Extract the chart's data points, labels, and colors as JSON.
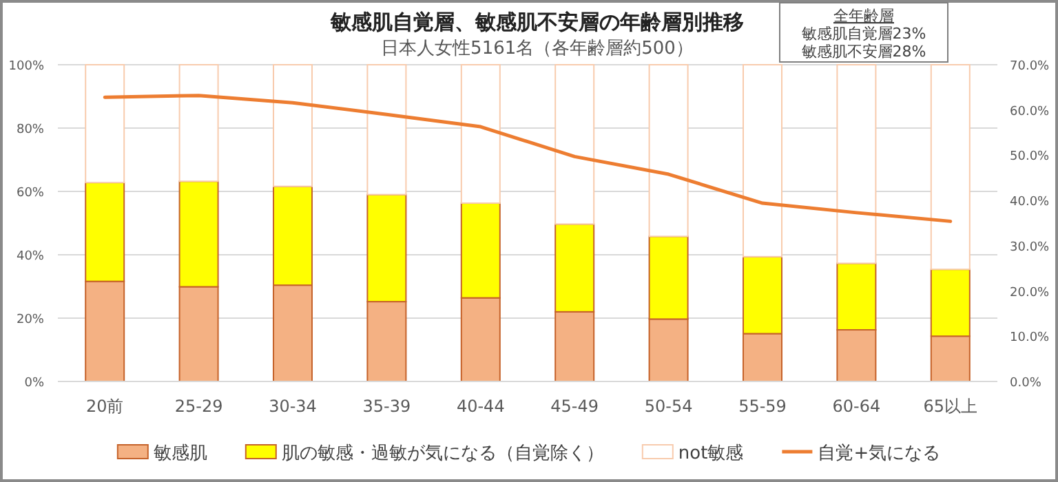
{
  "chart_data": {
    "type": "bar",
    "title": "敏感肌自覚層、敏感肌不安層の年齢層別推移",
    "subtitle": "日本人女性5161名（各年齢層約500）",
    "categories": [
      "20前",
      "25-29",
      "30-34",
      "35-39",
      "40-44",
      "45-49",
      "50-54",
      "55-59",
      "60-64",
      "65以上"
    ],
    "stacked": true,
    "series": [
      {
        "name": "敏感肌",
        "color": "#f4b183",
        "values": [
          31.6,
          29.9,
          30.4,
          25.2,
          26.4,
          22.0,
          19.7,
          15.1,
          16.3,
          14.3
        ]
      },
      {
        "name": "肌の敏感・過敏が気になる（自覚除く）",
        "color": "#ffff00",
        "values": [
          31.2,
          33.3,
          31.2,
          33.8,
          29.9,
          27.7,
          26.1,
          24.3,
          21.0,
          21.1
        ]
      },
      {
        "name": "not敏感",
        "color": "#ffffff",
        "values": [
          37.2,
          36.8,
          38.4,
          41.0,
          43.7,
          50.3,
          54.2,
          60.6,
          62.7,
          64.6
        ]
      },
      {
        "name": "自覚+気になる",
        "type": "line",
        "axis": "y2",
        "color": "#ed7d31",
        "values": [
          62.8,
          63.2,
          61.6,
          59.0,
          56.3,
          49.7,
          45.8,
          39.4,
          37.3,
          35.4
        ]
      }
    ],
    "ylim": [
      0,
      100
    ],
    "yticks": [
      {
        "value": 0,
        "label": "0%"
      },
      {
        "value": 20,
        "label": "20%"
      },
      {
        "value": 40,
        "label": "40%"
      },
      {
        "value": 60,
        "label": "60%"
      },
      {
        "value": 80,
        "label": "80%"
      },
      {
        "value": 100,
        "label": "100%"
      }
    ],
    "y2lim": [
      0,
      70
    ],
    "y2ticks": [
      {
        "value": 0,
        "label": "0.0%"
      },
      {
        "value": 10,
        "label": "10.0%"
      },
      {
        "value": 20,
        "label": "20.0%"
      },
      {
        "value": 30,
        "label": "30.0%"
      },
      {
        "value": 40,
        "label": "40.0%"
      },
      {
        "value": 50,
        "label": "50.0%"
      },
      {
        "value": 60,
        "label": "60.0%"
      },
      {
        "value": 70,
        "label": "70.0%"
      }
    ],
    "grid": "y",
    "legend": "bottom",
    "annotations": [
      "全年齢層",
      "敏感肌自覚層23%",
      "敏感肌不安層28%"
    ]
  }
}
